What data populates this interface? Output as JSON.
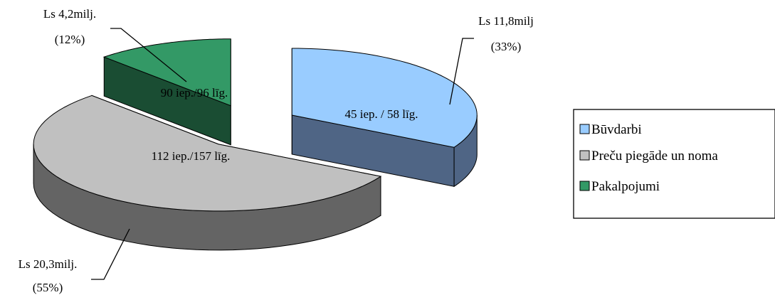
{
  "chart_data": {
    "type": "pie",
    "style": "3d-exploded",
    "title": "",
    "categories": [
      "Būvdarbi",
      "Preču piegāde un noma",
      "Pakalpojumi"
    ],
    "values": [
      33,
      55,
      12
    ],
    "unit": "%",
    "inner_labels": [
      "45 iep. / 58 līg.",
      "112 iep./157 līg.",
      "90 iep./96 līg."
    ],
    "callout_labels": [
      {
        "value": "Ls 11,8milj",
        "percent": "(33%)"
      },
      {
        "value": "Ls 20,3milj.",
        "percent": "(55%)"
      },
      {
        "value": "Ls 4,2milj.",
        "percent": "(12%)"
      }
    ],
    "colors": {
      "top": [
        "#99ccff",
        "#c0c0c0",
        "#339966"
      ],
      "side": [
        "#4f6585",
        "#646464",
        "#1a4d33"
      ]
    },
    "legend": {
      "position": "right",
      "items": [
        "Būvdarbi",
        "Preču piegāde un noma",
        "Pakalpojumi"
      ]
    }
  }
}
